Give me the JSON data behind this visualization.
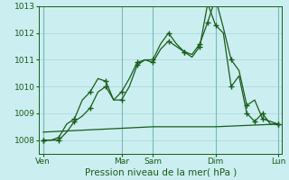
{
  "title": "",
  "xlabel": "Pression niveau de la mer( hPa )",
  "ylabel": "",
  "bg_color": "#cbeef0",
  "grid_color": "#a8d8d8",
  "line_color": "#1a5c1a",
  "ylim": [
    1007.5,
    1013.0
  ],
  "day_labels": [
    "Ven",
    "Mar",
    "Sam",
    "Dim",
    "Lun"
  ],
  "day_positions": [
    0,
    10,
    14,
    22,
    30
  ],
  "series1_x": [
    0,
    1,
    2,
    3,
    4,
    5,
    6,
    7,
    8,
    9,
    10,
    11,
    12,
    13,
    14,
    15,
    16,
    17,
    18,
    19,
    20,
    21,
    22,
    23,
    24,
    25,
    26,
    27,
    28,
    29,
    30
  ],
  "series1_y": [
    1008.0,
    1008.0,
    1008.1,
    1008.6,
    1008.8,
    1009.5,
    1009.8,
    1010.3,
    1010.2,
    1009.5,
    1009.5,
    1010.0,
    1010.8,
    1011.0,
    1011.0,
    1011.6,
    1012.0,
    1011.6,
    1011.3,
    1011.1,
    1011.5,
    1013.1,
    1012.3,
    1012.0,
    1010.0,
    1010.4,
    1009.0,
    1008.7,
    1009.0,
    1008.6,
    1008.6
  ],
  "series2_x": [
    0,
    1,
    2,
    3,
    4,
    5,
    6,
    7,
    8,
    9,
    10,
    11,
    12,
    13,
    14,
    15,
    16,
    17,
    18,
    19,
    20,
    21,
    22,
    23,
    24,
    25,
    26,
    27,
    28,
    29,
    30
  ],
  "series2_y": [
    1008.0,
    1008.0,
    1008.0,
    1008.3,
    1008.7,
    1008.9,
    1009.2,
    1009.8,
    1010.0,
    1009.5,
    1009.8,
    1010.3,
    1010.9,
    1011.0,
    1010.9,
    1011.4,
    1011.7,
    1011.5,
    1011.3,
    1011.2,
    1011.6,
    1012.4,
    1013.3,
    1012.2,
    1011.0,
    1010.6,
    1009.3,
    1009.5,
    1008.8,
    1008.7,
    1008.6
  ],
  "series3_x": [
    0,
    14,
    22,
    30
  ],
  "series3_y": [
    1008.3,
    1008.5,
    1008.5,
    1008.6
  ],
  "xlim": [
    -0.5,
    30.5
  ],
  "marker_x1": [
    0,
    2,
    4,
    6,
    8,
    10,
    12,
    14,
    16,
    18,
    20,
    21,
    22,
    24,
    26,
    27,
    28,
    30
  ],
  "marker_y1": [
    1008.0,
    1008.1,
    1008.8,
    1009.8,
    1010.2,
    1009.5,
    1010.8,
    1011.0,
    1012.0,
    1011.3,
    1011.5,
    1013.1,
    1012.3,
    1010.0,
    1009.0,
    1008.7,
    1009.0,
    1008.6
  ],
  "marker_x2": [
    0,
    2,
    4,
    6,
    8,
    10,
    12,
    14,
    16,
    18,
    20,
    21,
    22,
    24,
    26,
    28,
    30
  ],
  "marker_y2": [
    1008.0,
    1008.0,
    1008.7,
    1009.2,
    1010.0,
    1009.8,
    1010.9,
    1010.9,
    1011.7,
    1011.3,
    1011.6,
    1012.4,
    1013.3,
    1011.0,
    1009.3,
    1008.8,
    1008.6
  ]
}
